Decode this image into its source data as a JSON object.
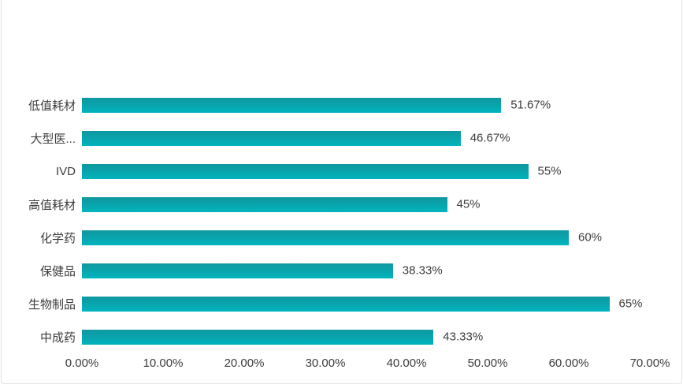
{
  "chart_data": {
    "type": "bar",
    "orientation": "horizontal",
    "title": "",
    "xlabel": "",
    "ylabel": "",
    "categories": [
      "低值耗材",
      "大型医...",
      "IVD",
      "高值耗材",
      "化学药",
      "保健品",
      "生物制品",
      "中成药"
    ],
    "values": [
      51.67,
      46.67,
      55,
      45,
      60,
      38.33,
      65,
      43.33
    ],
    "value_labels": [
      "51.67%",
      "46.67%",
      "55%",
      "45%",
      "60%",
      "38.33%",
      "65%",
      "43.33%"
    ],
    "xlim": [
      0,
      70
    ],
    "x_tick_labels": [
      "0.00%",
      "10.00%",
      "20.00%",
      "30.00%",
      "40.00%",
      "50.00%",
      "60.00%",
      "70.00%"
    ],
    "grid": false,
    "legend": false,
    "data_labels": true,
    "bar_color": "#0AA3AB",
    "bar_gradient_top": "#0F98A1",
    "bar_gradient_bottom": "#00B5BE",
    "text_color": "#3C3C3C",
    "card_border_color": "#E3E3E3"
  }
}
